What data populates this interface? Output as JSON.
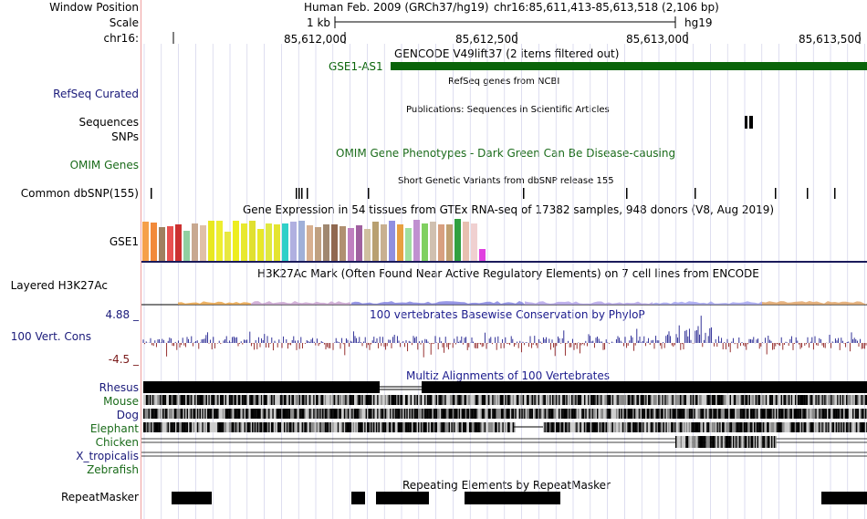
{
  "labels": {
    "window_position": "Window Position",
    "scale": "Scale",
    "chrom": "chr16:",
    "refseq": "RefSeq Curated",
    "sequences": "Sequences",
    "snps": "SNPs",
    "omim_genes": "OMIM Genes",
    "common_dbsnp": "Common dbSNP(155)",
    "gse1": "GSE1",
    "layered": "Layered H3K27Ac",
    "cons_max": "4.88 _",
    "cons_label": "100 Vert. Cons",
    "cons_min": "-4.5 _",
    "repeatmasker": "RepeatMasker"
  },
  "species": [
    {
      "name": "Rhesus",
      "color": "#1a1a7a"
    },
    {
      "name": "Mouse",
      "color": "#1a6b1a"
    },
    {
      "name": "Dog",
      "color": "#1a1a7a"
    },
    {
      "name": "Elephant",
      "color": "#1a6b1a"
    },
    {
      "name": "Chicken",
      "color": "#1a6b1a"
    },
    {
      "name": "X_tropicalis",
      "color": "#1a1a7a"
    },
    {
      "name": "Zebrafish",
      "color": "#1a6b1a"
    }
  ],
  "header": {
    "assembly": "Human Feb. 2009 (GRCh37/hg19)",
    "position": "chr16:85,611,413-85,613,518 (2,106 bp)",
    "scale_text": "1 kb",
    "scale_db": "hg19",
    "ticks": [
      "85,612,000",
      "85,612,500",
      "85,613,000",
      "85,613,500"
    ]
  },
  "tracks": {
    "gencode_title": "GENCODE V49lift37 (2 items filtered out)",
    "gencode_gene": "GSE1-AS1",
    "refseq_title": "RefSeq genes from NCBI",
    "pubs_title": "Publications: Sequences in Scientific Articles",
    "omim_title": "OMIM Gene Phenotypes - Dark Green Can Be Disease-causing",
    "dbsnp_title": "Short Genetic Variants from dbSNP release 155",
    "gtex_title": "Gene Expression in 54 tissues from GTEx RNA-seq of 17382 samples, 948 donors (V8, Aug 2019)",
    "h3k27ac_title": "H3K27Ac Mark (Often Found Near Active Regulatory Elements) on 7 cell lines from ENCODE",
    "phylop_title": "100 vertebrates Basewise Conservation by PhyloP",
    "multiz_title": "Multiz Alignments of 100 Vertebrates",
    "repeat_title": "Repeating Elements by RepeatMasker"
  },
  "colors": {
    "gencode": "#0a640a",
    "cons_pos": "#1a1a8c",
    "cons_neg": "#8c1a1a",
    "gridline": "#c8c8e6",
    "separator": "#f0a0a0"
  },
  "gtex_bars": [
    {
      "color": "#f5a04a",
      "value": 43
    },
    {
      "color": "#f28a3a",
      "value": 42
    },
    {
      "color": "#a08060",
      "value": 37
    },
    {
      "color": "#e85050",
      "value": 38
    },
    {
      "color": "#cc3030",
      "value": 40
    },
    {
      "color": "#90d0a0",
      "value": 33
    },
    {
      "color": "#c8a890",
      "value": 41
    },
    {
      "color": "#e0c0a8",
      "value": 39
    },
    {
      "color": "#e8e820",
      "value": 44
    },
    {
      "color": "#eeee30",
      "value": 44
    },
    {
      "color": "#e8e840",
      "value": 32
    },
    {
      "color": "#eded20",
      "value": 44
    },
    {
      "color": "#e8e830",
      "value": 41
    },
    {
      "color": "#e0e030",
      "value": 44
    },
    {
      "color": "#e8e828",
      "value": 35
    },
    {
      "color": "#e0e840",
      "value": 41
    },
    {
      "color": "#e4e430",
      "value": 40
    },
    {
      "color": "#30d0c8",
      "value": 41
    },
    {
      "color": "#b0b0e0",
      "value": 43
    },
    {
      "color": "#a0b0d8",
      "value": 44
    },
    {
      "color": "#d8b090",
      "value": 39
    },
    {
      "color": "#c0a080",
      "value": 37
    },
    {
      "color": "#a08870",
      "value": 40
    },
    {
      "color": "#906850",
      "value": 40
    },
    {
      "color": "#b09070",
      "value": 38
    },
    {
      "color": "#c080c0",
      "value": 36
    },
    {
      "color": "#a060a0",
      "value": 39
    },
    {
      "color": "#d0c0a0",
      "value": 35
    },
    {
      "color": "#b8a070",
      "value": 43
    },
    {
      "color": "#c8b090",
      "value": 40
    },
    {
      "color": "#9090e0",
      "value": 44
    },
    {
      "color": "#e8a040",
      "value": 40
    },
    {
      "color": "#a0e0a0",
      "value": 36
    },
    {
      "color": "#c090d0",
      "value": 45
    },
    {
      "color": "#80d060",
      "value": 41
    },
    {
      "color": "#d0c0b0",
      "value": 43
    },
    {
      "color": "#d8a080",
      "value": 40
    },
    {
      "color": "#c0a070",
      "value": 40
    },
    {
      "color": "#30a040",
      "value": 46
    },
    {
      "color": "#e8c0b0",
      "value": 43
    },
    {
      "color": "#f0d0d0",
      "value": 41
    },
    {
      "color": "#e040e0",
      "value": 13
    }
  ]
}
